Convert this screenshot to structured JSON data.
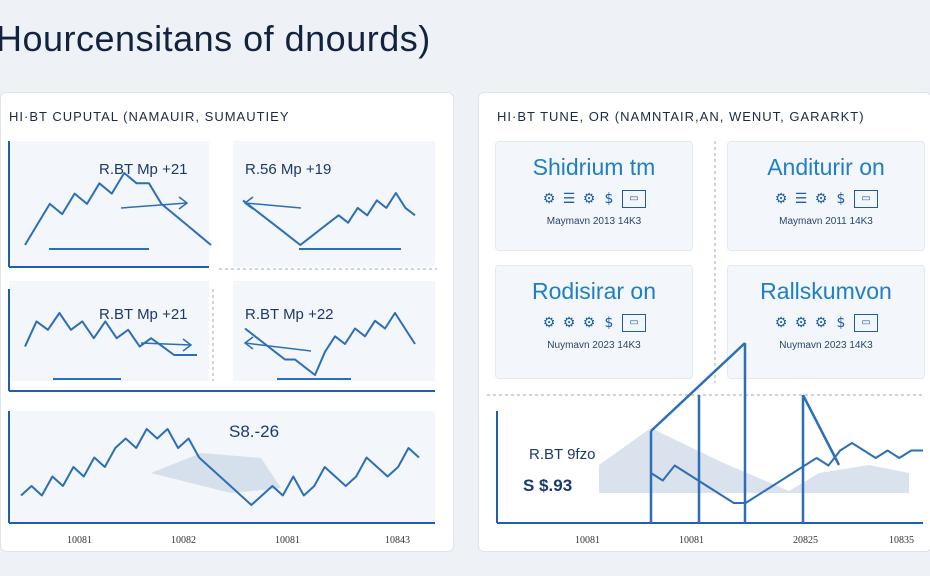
{
  "title": "Hourcensitans of dnourds)",
  "colors": {
    "line": "#2c6fb7",
    "axis": "#1f5fae",
    "fill": "#c9d6e6",
    "title": "#13233f",
    "card_title": "#1f7fc4"
  },
  "left_panel": {
    "heading": "HI·BT CUPUTAL (NAMAUIR, SUMAUTIEY",
    "annotations": [
      "R.BT Mp +21",
      "R.56 Mp +19",
      "R.BT Mp +21",
      "R.BT Mp +22",
      "S8.-26"
    ]
  },
  "right_panel": {
    "heading": "HI·BT TUNE, OR (NAMNTAIR,AN, WENUT, GARARKT)",
    "cards": [
      {
        "title": "Shidrium tm",
        "sub": "Maymavn 2013 14K3",
        "icons": [
          "⚙",
          "☰",
          "⚙",
          "$",
          "▭"
        ]
      },
      {
        "title": "Anditurir on",
        "sub": "Maymavn 2011 14K3",
        "icons": [
          "⚙",
          "☰",
          "⚙",
          "$",
          "▭"
        ]
      },
      {
        "title": "Rodisirar on",
        "sub": "Nuymavn 2023 14K3",
        "icons": [
          "⚙",
          "⚙",
          "⚙",
          "$",
          "▭"
        ]
      },
      {
        "title": "Rallskumvon",
        "sub": "Nuymavn 2023 14K3",
        "icons": [
          "⚙",
          "⚙",
          "⚙",
          "$",
          "▭"
        ]
      }
    ],
    "annotations": [
      "R.BT 9fzo",
      "S $.93"
    ]
  },
  "chart_data": [
    {
      "type": "line",
      "name": "top-left-1",
      "values": [
        2,
        4,
        6,
        5,
        7,
        6,
        8,
        7,
        9,
        8,
        8,
        6,
        5,
        4,
        3,
        2
      ]
    },
    {
      "type": "line",
      "name": "top-left-2",
      "values": [
        8,
        7,
        6,
        5,
        4,
        3,
        2,
        3,
        4,
        5,
        6,
        5,
        7,
        6,
        8,
        7,
        9,
        7,
        6
      ]
    },
    {
      "type": "line",
      "name": "mid-left-1",
      "values": [
        4,
        7,
        6,
        8,
        6,
        7,
        5,
        7,
        5,
        6,
        4,
        5,
        4,
        3,
        3,
        3
      ]
    },
    {
      "type": "line",
      "name": "mid-left-2",
      "values": [
        7,
        6,
        5,
        4,
        3,
        3,
        2,
        1,
        4,
        6,
        5,
        7,
        6,
        8,
        7,
        9,
        7,
        5
      ]
    },
    {
      "type": "line",
      "name": "bottom-left",
      "x_ticks": [
        "10081",
        "10082",
        "10081",
        "10843"
      ],
      "values": [
        3,
        4,
        3,
        5,
        4,
        6,
        5,
        7,
        6,
        8,
        9,
        8,
        10,
        9,
        10,
        8,
        9,
        7,
        6,
        5,
        4,
        3,
        2,
        3,
        4,
        3,
        5,
        3,
        4,
        6,
        5,
        4,
        5,
        7,
        6,
        5,
        6,
        8,
        7
      ]
    },
    {
      "type": "line",
      "name": "bottom-right",
      "x_ticks": [
        "10081",
        "10081",
        "20825",
        "10835"
      ],
      "values": [
        5,
        4,
        6,
        5,
        4,
        3,
        2,
        1,
        1,
        2,
        3,
        4,
        5,
        6,
        7,
        6,
        8,
        9,
        8,
        7,
        8,
        7,
        8,
        8
      ]
    }
  ]
}
